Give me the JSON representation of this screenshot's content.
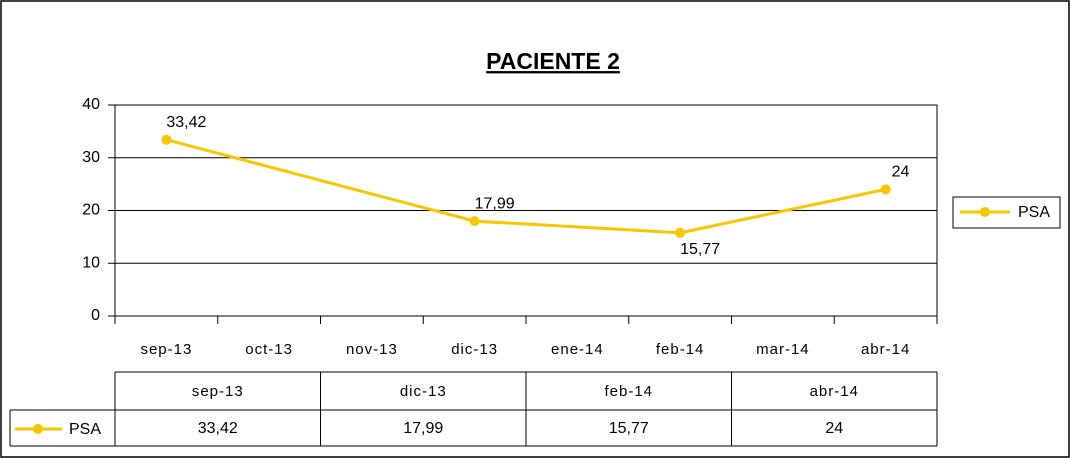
{
  "chart_data": {
    "type": "line",
    "title": "PACIENTE 2",
    "categories": [
      "sep-13",
      "oct-13",
      "nov-13",
      "dic-13",
      "ene-14",
      "feb-14",
      "mar-14",
      "abr-14"
    ],
    "series": [
      {
        "name": "PSA",
        "color": "#f7c600",
        "x": [
          "sep-13",
          "dic-13",
          "feb-14",
          "abr-14"
        ],
        "values": [
          33.42,
          17.99,
          15.77,
          24
        ],
        "value_labels": [
          "33,42",
          "17,99",
          "15,77",
          "24"
        ]
      }
    ],
    "ylim": [
      0,
      40
    ],
    "yticks": [
      0,
      10,
      20,
      30,
      40
    ],
    "grid": true,
    "legend": "right"
  }
}
